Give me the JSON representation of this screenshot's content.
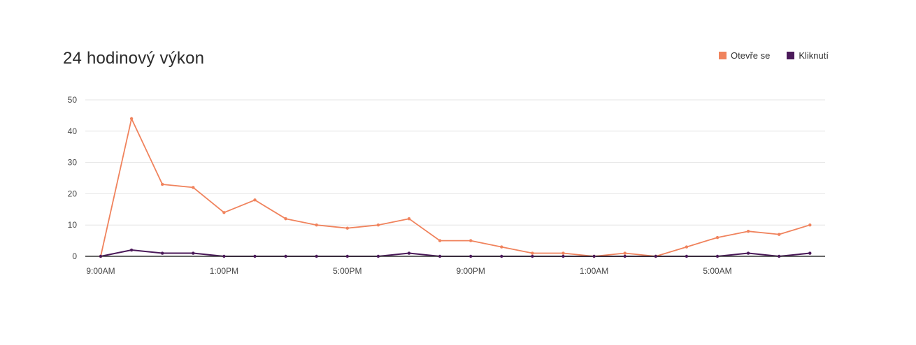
{
  "chart_data": {
    "type": "line",
    "title": "24 hodinový výkon",
    "x_tick_labels": [
      "9:00AM",
      "1:00PM",
      "5:00PM",
      "9:00PM",
      "1:00AM",
      "5:00AM"
    ],
    "y_ticks": [
      0,
      10,
      20,
      30,
      40,
      50
    ],
    "ylim": [
      0,
      50
    ],
    "grid": true,
    "legend_position": "top-right",
    "series": [
      {
        "name": "Otevře se",
        "color": "#f0835d",
        "values": [
          0,
          44,
          23,
          22,
          14,
          18,
          12,
          10,
          9,
          10,
          12,
          5,
          5,
          3,
          1,
          1,
          0,
          1,
          0,
          3,
          6,
          8,
          7,
          10
        ]
      },
      {
        "name": "Kliknutí",
        "color": "#4b1a5a",
        "values": [
          0,
          2,
          1,
          1,
          0,
          0,
          0,
          0,
          0,
          0,
          1,
          0,
          0,
          0,
          0,
          0,
          0,
          0,
          0,
          0,
          0,
          1,
          0,
          1
        ]
      }
    ]
  }
}
